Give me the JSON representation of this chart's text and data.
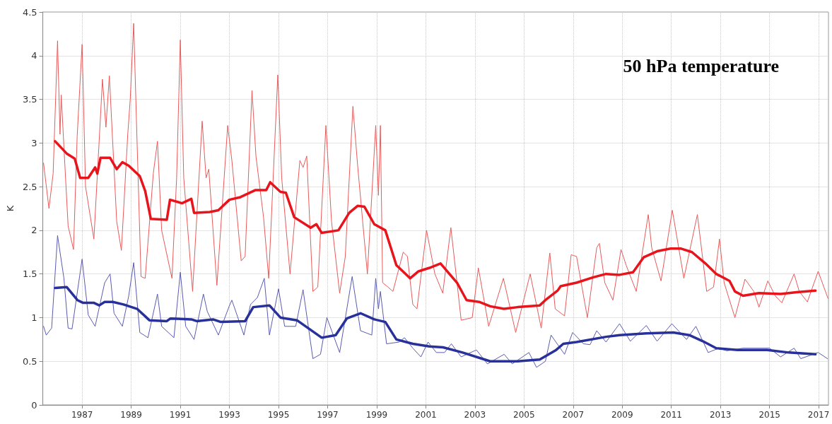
{
  "chart_data": {
    "type": "line",
    "title": "50 hPa temperature",
    "ylabel": "K",
    "xlim": [
      1985.4,
      2017.4
    ],
    "xticks": [
      1987,
      1989,
      1991,
      1993,
      1995,
      1997,
      1999,
      2001,
      2003,
      2005,
      2007,
      2009,
      2011,
      2013,
      2015,
      2017
    ],
    "ylim": [
      0,
      4.5
    ],
    "yticks": [
      0,
      0.5,
      1,
      1.5,
      2,
      2.5,
      3,
      3.5,
      4,
      4.5
    ],
    "grid": true,
    "marker": "none",
    "line_style": "solid",
    "series": [
      {
        "color": "#e85a5a",
        "x": [
          1985.43,
          1985.65,
          1985.82,
          1986.0,
          1986.1,
          1986.15,
          1986.26,
          1986.43,
          1986.65,
          1986.8,
          1987.0,
          1987.14,
          1987.48,
          1987.83,
          1987.97,
          1988.11,
          1988.41,
          1988.6,
          1988.86,
          1988.96,
          1989.1,
          1989.24,
          1989.4,
          1989.57,
          1989.9,
          1990.07,
          1990.24,
          1990.66,
          1990.85,
          1991.0,
          1991.14,
          1991.5,
          1991.89,
          1992.05,
          1992.16,
          1992.49,
          1992.93,
          1993.1,
          1993.48,
          1993.64,
          1993.92,
          1994.08,
          1994.39,
          1994.6,
          1994.97,
          1995.13,
          1995.47,
          1995.87,
          1996.0,
          1996.15,
          1996.4,
          1996.6,
          1996.93,
          1997.16,
          1997.49,
          1997.72,
          1998.03,
          1998.22,
          1998.62,
          1998.96,
          1999.07,
          1999.15,
          1999.24,
          1999.46,
          1999.66,
          2000.08,
          2000.25,
          2000.47,
          2000.64,
          2001.03,
          2001.37,
          2001.69,
          2002.02,
          2002.27,
          2002.44,
          2002.89,
          2003.14,
          2003.56,
          2004.16,
          2004.66,
          2005.25,
          2005.7,
          2006.05,
          2006.27,
          2006.65,
          2006.92,
          2007.14,
          2007.58,
          2007.96,
          2008.07,
          2008.29,
          2008.62,
          2008.95,
          2009.16,
          2009.57,
          2010.06,
          2010.2,
          2010.58,
          2011.04,
          2011.51,
          2012.06,
          2012.44,
          2012.72,
          2012.96,
          2013.15,
          2013.59,
          2014.0,
          2014.36,
          2014.57,
          2014.93,
          2015.23,
          2015.5,
          2016.0,
          2016.21,
          2016.54,
          2016.98,
          2017.38
        ],
        "values": [
          2.77,
          2.25,
          2.65,
          4.17,
          3.1,
          3.55,
          2.95,
          2.05,
          1.78,
          3.08,
          4.13,
          2.5,
          1.9,
          3.73,
          3.18,
          3.77,
          2.1,
          1.77,
          3.1,
          3.5,
          4.37,
          3.0,
          1.47,
          1.45,
          2.65,
          3.02,
          2.0,
          1.45,
          2.6,
          4.18,
          2.6,
          1.3,
          3.25,
          2.6,
          2.7,
          1.37,
          3.2,
          2.8,
          1.65,
          1.7,
          3.6,
          2.85,
          2.15,
          1.45,
          3.78,
          2.6,
          1.5,
          2.8,
          2.72,
          2.85,
          1.3,
          1.35,
          3.2,
          2.1,
          1.28,
          1.7,
          3.42,
          2.75,
          1.5,
          3.2,
          2.4,
          3.2,
          1.4,
          1.35,
          1.3,
          1.75,
          1.7,
          1.15,
          1.1,
          2.0,
          1.5,
          1.28,
          2.03,
          1.4,
          0.97,
          1.0,
          1.57,
          0.9,
          1.45,
          0.83,
          1.5,
          0.88,
          1.74,
          1.1,
          1.02,
          1.72,
          1.7,
          1.0,
          1.8,
          1.85,
          1.4,
          1.2,
          1.78,
          1.6,
          1.3,
          2.18,
          1.8,
          1.42,
          2.23,
          1.45,
          2.18,
          1.3,
          1.35,
          1.9,
          1.4,
          1.0,
          1.44,
          1.3,
          1.12,
          1.42,
          1.25,
          1.17,
          1.5,
          1.3,
          1.18,
          1.53,
          1.22
        ]
      },
      {
        "color": "#e8141c",
        "x": [
          1985.9,
          1986.37,
          1986.7,
          1986.92,
          1987.25,
          1987.53,
          1987.62,
          1987.75,
          1988.14,
          1988.41,
          1988.64,
          1988.9,
          1989.35,
          1989.57,
          1989.8,
          1990.45,
          1990.58,
          1991.07,
          1991.45,
          1991.56,
          1992.2,
          1992.55,
          1993.0,
          1993.45,
          1994.05,
          1994.5,
          1994.66,
          1995.08,
          1995.3,
          1995.64,
          1996.31,
          1996.54,
          1996.76,
          1997.44,
          1997.88,
          1998.22,
          1998.5,
          1998.9,
          1999.35,
          1999.8,
          2000.36,
          2000.7,
          2001.15,
          2001.6,
          2002.27,
          2002.66,
          2003.17,
          2003.62,
          2004.18,
          2004.74,
          2005.64,
          2005.87,
          2006.37,
          2006.49,
          2007.14,
          2007.8,
          2008.34,
          2008.89,
          2009.44,
          2009.87,
          2010.42,
          2010.97,
          2011.4,
          2011.84,
          2012.39,
          2012.83,
          2013.37,
          2013.59,
          2013.92,
          2014.57,
          2015.45,
          2016.1,
          2016.87
        ],
        "values": [
          3.02,
          2.88,
          2.82,
          2.6,
          2.6,
          2.72,
          2.65,
          2.83,
          2.83,
          2.7,
          2.78,
          2.74,
          2.62,
          2.45,
          2.13,
          2.12,
          2.35,
          2.31,
          2.36,
          2.2,
          2.21,
          2.23,
          2.35,
          2.38,
          2.46,
          2.46,
          2.55,
          2.44,
          2.43,
          2.15,
          2.03,
          2.07,
          1.97,
          2.0,
          2.2,
          2.28,
          2.27,
          2.07,
          2.0,
          1.6,
          1.45,
          1.53,
          1.57,
          1.62,
          1.4,
          1.2,
          1.18,
          1.13,
          1.1,
          1.12,
          1.14,
          1.2,
          1.31,
          1.36,
          1.4,
          1.46,
          1.5,
          1.49,
          1.52,
          1.69,
          1.76,
          1.79,
          1.79,
          1.75,
          1.62,
          1.5,
          1.42,
          1.3,
          1.25,
          1.28,
          1.27,
          1.29,
          1.31
        ]
      },
      {
        "color": "#5a5ab4",
        "x": [
          1985.43,
          1985.54,
          1985.76,
          1986.0,
          1986.26,
          1986.43,
          1986.59,
          1987.0,
          1987.25,
          1987.53,
          1987.92,
          1988.14,
          1988.3,
          1988.64,
          1988.9,
          1989.1,
          1989.35,
          1989.68,
          1990.07,
          1990.24,
          1990.74,
          1991.0,
          1991.22,
          1991.56,
          1991.94,
          1992.1,
          1992.55,
          1992.99,
          1993.1,
          1993.59,
          1993.86,
          1994.14,
          1994.42,
          1994.63,
          1995.0,
          1995.25,
          1995.7,
          1996.0,
          1996.4,
          1996.71,
          1996.97,
          1997.49,
          1998.0,
          1998.34,
          1998.8,
          1998.96,
          1999.07,
          1999.15,
          1999.4,
          1999.91,
          2000.13,
          2000.47,
          2000.8,
          2001.09,
          2001.43,
          2001.76,
          2002.04,
          2002.44,
          2003.06,
          2003.51,
          2004.19,
          2004.52,
          2005.2,
          2005.51,
          2005.87,
          2006.1,
          2006.65,
          2006.98,
          2007.42,
          2007.69,
          2007.96,
          2008.34,
          2008.89,
          2009.33,
          2009.98,
          2010.42,
          2011.02,
          2011.62,
          2012.0,
          2012.5,
          2012.93,
          2013.26,
          2013.92,
          2015.0,
          2015.45,
          2016.0,
          2016.27,
          2016.98,
          2017.36
        ],
        "values": [
          0.9,
          0.8,
          0.88,
          1.94,
          1.45,
          0.88,
          0.87,
          1.67,
          1.03,
          0.9,
          1.4,
          1.5,
          1.05,
          0.9,
          1.25,
          1.63,
          0.83,
          0.77,
          1.27,
          0.9,
          0.77,
          1.52,
          0.9,
          0.75,
          1.27,
          1.07,
          0.8,
          1.13,
          1.2,
          0.8,
          1.15,
          1.23,
          1.45,
          0.8,
          1.33,
          0.9,
          0.9,
          1.32,
          0.53,
          0.58,
          1.0,
          0.6,
          1.47,
          0.85,
          0.8,
          1.45,
          1.1,
          1.3,
          0.7,
          0.72,
          0.77,
          0.65,
          0.55,
          0.72,
          0.6,
          0.6,
          0.7,
          0.55,
          0.63,
          0.47,
          0.58,
          0.47,
          0.6,
          0.43,
          0.5,
          0.8,
          0.58,
          0.83,
          0.7,
          0.69,
          0.85,
          0.72,
          0.93,
          0.73,
          0.91,
          0.73,
          0.93,
          0.75,
          0.9,
          0.6,
          0.65,
          0.62,
          0.65,
          0.65,
          0.55,
          0.65,
          0.53,
          0.6,
          0.53
        ]
      },
      {
        "color": "#28309a",
        "x": [
          1985.9,
          1986.37,
          1986.81,
          1987.03,
          1987.47,
          1987.7,
          1987.92,
          1988.25,
          1988.69,
          1989.24,
          1989.74,
          1990.45,
          1990.6,
          1991.45,
          1991.67,
          1992.33,
          1992.65,
          1993.64,
          1993.97,
          1994.63,
          1995.08,
          1995.75,
          1996.76,
          1997.33,
          1997.78,
          1998.34,
          1998.9,
          1999.35,
          1999.8,
          2000.47,
          2001.15,
          2001.7,
          2002.5,
          2003.28,
          2003.62,
          2004.74,
          2005.64,
          2006.31,
          2006.6,
          2007.14,
          2008.34,
          2008.89,
          2009.98,
          2011.08,
          2011.73,
          2012.28,
          2012.83,
          2013.7,
          2014.9,
          2015.78,
          2016.87
        ],
        "values": [
          1.34,
          1.35,
          1.2,
          1.17,
          1.17,
          1.14,
          1.18,
          1.18,
          1.15,
          1.1,
          0.97,
          0.96,
          0.99,
          0.98,
          0.96,
          0.98,
          0.95,
          0.96,
          1.12,
          1.14,
          1.0,
          0.97,
          0.77,
          0.8,
          0.99,
          1.05,
          0.98,
          0.95,
          0.75,
          0.7,
          0.67,
          0.66,
          0.6,
          0.53,
          0.5,
          0.5,
          0.52,
          0.63,
          0.7,
          0.72,
          0.78,
          0.8,
          0.82,
          0.83,
          0.8,
          0.73,
          0.65,
          0.63,
          0.63,
          0.6,
          0.58
        ]
      }
    ]
  }
}
